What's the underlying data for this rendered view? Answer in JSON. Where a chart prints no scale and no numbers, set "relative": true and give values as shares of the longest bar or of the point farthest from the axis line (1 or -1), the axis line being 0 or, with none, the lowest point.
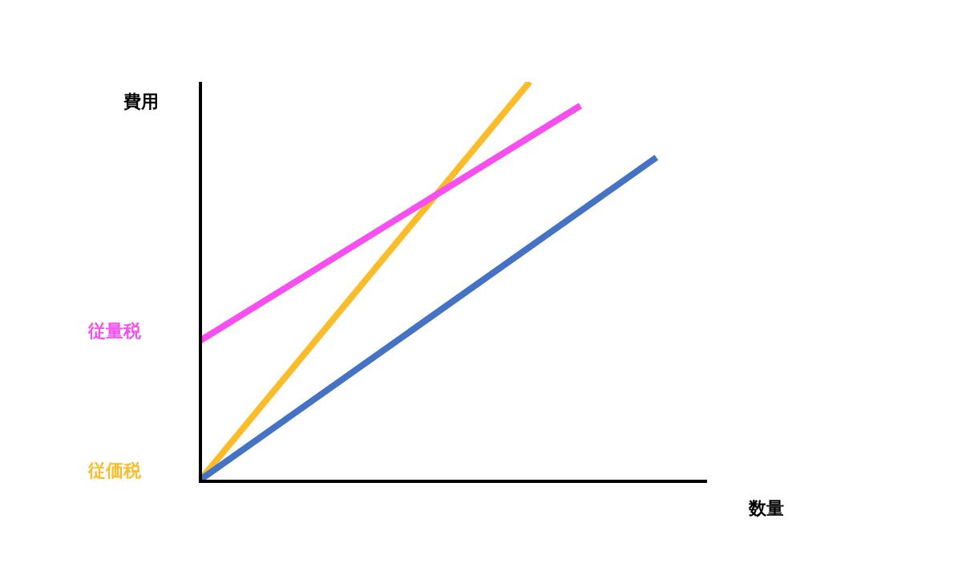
{
  "chart_data": {
    "type": "line",
    "relative": true,
    "xlabel": "数量",
    "ylabel": "費用",
    "categories": [
      null,
      null,
      null,
      null,
      null,
      null,
      null,
      null,
      null,
      null,
      null,
      null,
      null,
      null,
      null,
      null,
      null,
      null,
      null,
      null,
      null
    ],
    "series": [
      {
        "color": "#4472c4",
        "values": [
          0,
          null,
          null,
          null,
          null,
          null,
          null,
          null,
          null,
          null,
          null,
          null,
          null,
          null,
          null,
          null,
          null,
          null,
          0.81,
          null,
          null
        ]
      },
      {
        "name": "従量税",
        "color": "#f74ef0",
        "values": [
          0.35,
          null,
          null,
          null,
          null,
          null,
          null,
          null,
          null,
          null,
          null,
          null,
          null,
          null,
          null,
          0.94,
          null,
          null,
          null,
          null,
          null
        ]
      },
      {
        "name": "従価税",
        "color": "#fbbc2a",
        "values": [
          0,
          null,
          null,
          null,
          null,
          null,
          null,
          null,
          null,
          null,
          null,
          null,
          null,
          1,
          null,
          null,
          null,
          null,
          null,
          null,
          null
        ]
      }
    ],
    "marker": "none"
  }
}
